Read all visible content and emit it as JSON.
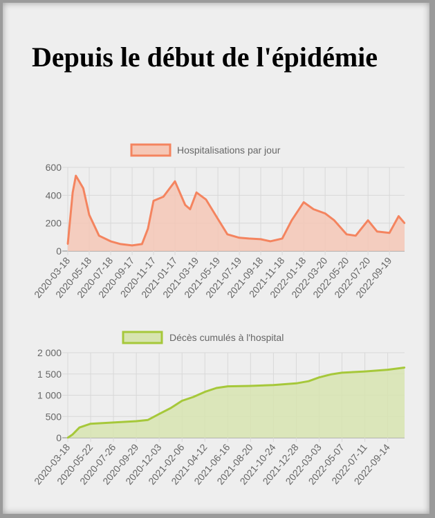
{
  "title": "Depuis le début de l'épidémie",
  "chart_data": [
    {
      "type": "area",
      "legend": "Hospitalisations par jour",
      "color": "#f4845f",
      "fill": "#f5c7b6",
      "ylim": [
        0,
        600
      ],
      "yticks": [
        "0",
        "200",
        "400",
        "600"
      ],
      "xticks": [
        "2020-03-18",
        "2020-05-18",
        "2020-07-18",
        "2020-09-17",
        "2020-11-17",
        "2021-01-17",
        "2021-03-19",
        "2021-05-19",
        "2021-07-19",
        "2021-09-18",
        "2021-11-18",
        "2022-01-18",
        "2022-03-20",
        "2022-05-20",
        "2022-07-20",
        "2022-09-19"
      ],
      "grid": true,
      "legend_position": "top",
      "series": [
        {
          "x": [
            "2020-03-18",
            "2020-04-01",
            "2020-04-10",
            "2020-05-01",
            "2020-05-18",
            "2020-06-15",
            "2020-07-18",
            "2020-08-15",
            "2020-09-17",
            "2020-10-15",
            "2020-11-01",
            "2020-11-17",
            "2020-12-15",
            "2021-01-17",
            "2021-02-15",
            "2021-03-01",
            "2021-03-19",
            "2021-04-15",
            "2021-05-19",
            "2021-06-15",
            "2021-07-19",
            "2021-08-15",
            "2021-09-18",
            "2021-10-15",
            "2021-11-18",
            "2021-12-15",
            "2022-01-18",
            "2022-02-15",
            "2022-03-20",
            "2022-04-15",
            "2022-05-20",
            "2022-06-15",
            "2022-07-20",
            "2022-08-15",
            "2022-09-19",
            "2022-10-15",
            "2022-11-01"
          ],
          "values": [
            50,
            420,
            540,
            450,
            260,
            110,
            70,
            50,
            40,
            50,
            160,
            360,
            390,
            500,
            330,
            300,
            420,
            370,
            230,
            120,
            95,
            90,
            85,
            70,
            90,
            220,
            350,
            300,
            270,
            220,
            120,
            110,
            220,
            140,
            130,
            250,
            200
          ]
        }
      ]
    },
    {
      "type": "area",
      "legend": "Décès cumulés à l'hospital",
      "color": "#a6c83a",
      "fill": "#d7e4b0",
      "ylim": [
        0,
        2000
      ],
      "yticks": [
        "0",
        "500",
        "1 000",
        "1 500",
        "2 000"
      ],
      "xticks": [
        "2020-03-18",
        "2020-05-22",
        "2020-07-26",
        "2020-09-29",
        "2020-12-03",
        "2021-02-06",
        "2021-04-12",
        "2021-06-16",
        "2021-08-20",
        "2021-10-24",
        "2021-12-28",
        "2022-03-03",
        "2022-05-07",
        "2022-07-11",
        "2022-09-14"
      ],
      "grid": true,
      "legend_position": "top",
      "series": [
        {
          "x": [
            "2020-03-18",
            "2020-04-01",
            "2020-04-20",
            "2020-05-22",
            "2020-07-26",
            "2020-09-29",
            "2020-11-01",
            "2020-12-03",
            "2021-01-05",
            "2021-02-06",
            "2021-03-10",
            "2021-04-12",
            "2021-05-15",
            "2021-06-16",
            "2021-08-20",
            "2021-10-24",
            "2021-12-28",
            "2022-02-01",
            "2022-03-03",
            "2022-04-05",
            "2022-05-07",
            "2022-07-11",
            "2022-09-14",
            "2022-11-01"
          ],
          "values": [
            0,
            80,
            240,
            330,
            360,
            390,
            420,
            560,
            700,
            870,
            960,
            1080,
            1170,
            1210,
            1220,
            1240,
            1280,
            1330,
            1420,
            1490,
            1530,
            1560,
            1600,
            1650
          ]
        }
      ]
    }
  ]
}
